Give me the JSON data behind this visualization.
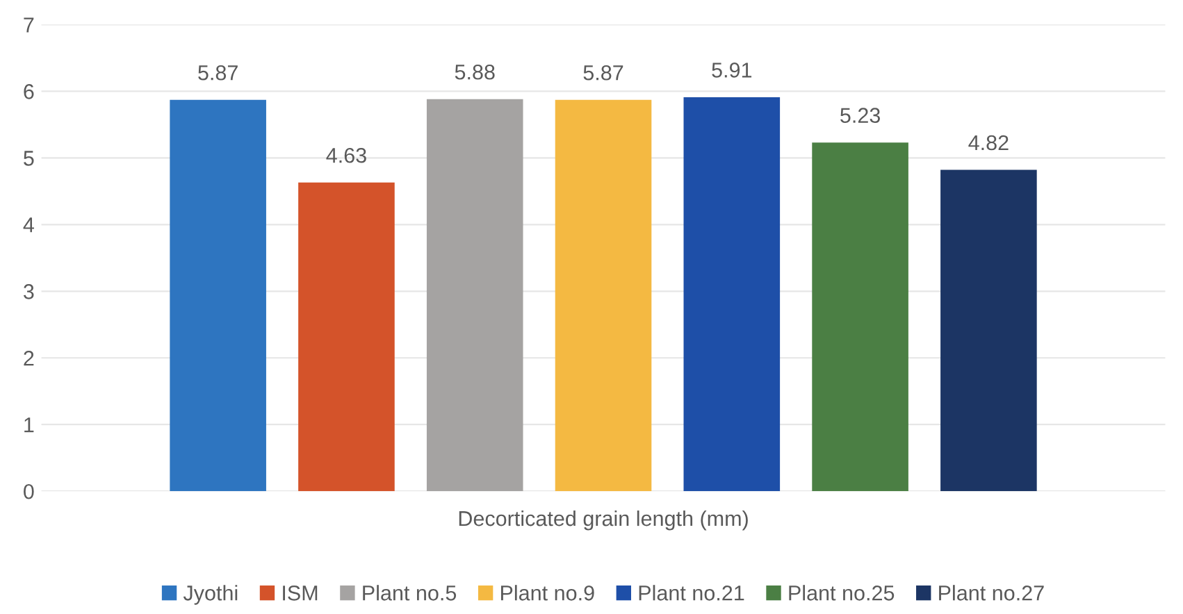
{
  "chart_data": {
    "type": "bar",
    "categories": [
      "Decorticated grain length (mm)"
    ],
    "series": [
      {
        "name": "Jyothi",
        "color": "#2e75c0",
        "values": [
          5.87
        ]
      },
      {
        "name": "ISM",
        "color": "#d4532a",
        "values": [
          4.63
        ]
      },
      {
        "name": "Plant no.5",
        "color": "#a5a3a2",
        "values": [
          5.88
        ]
      },
      {
        "name": "Plant no.9",
        "color": "#f4b942",
        "values": [
          5.87
        ]
      },
      {
        "name": "Plant no.21",
        "color": "#1e4fa8",
        "values": [
          5.91
        ]
      },
      {
        "name": "Plant no.25",
        "color": "#4b7f44",
        "values": [
          5.23
        ]
      },
      {
        "name": "Plant no.27",
        "color": "#1c3564",
        "values": [
          4.82
        ]
      }
    ],
    "ylim": [
      0,
      7
    ],
    "yticks": [
      0,
      1,
      2,
      3,
      4,
      5,
      6,
      7
    ],
    "grid": "y",
    "legend": "bottom",
    "data_labels": true
  }
}
